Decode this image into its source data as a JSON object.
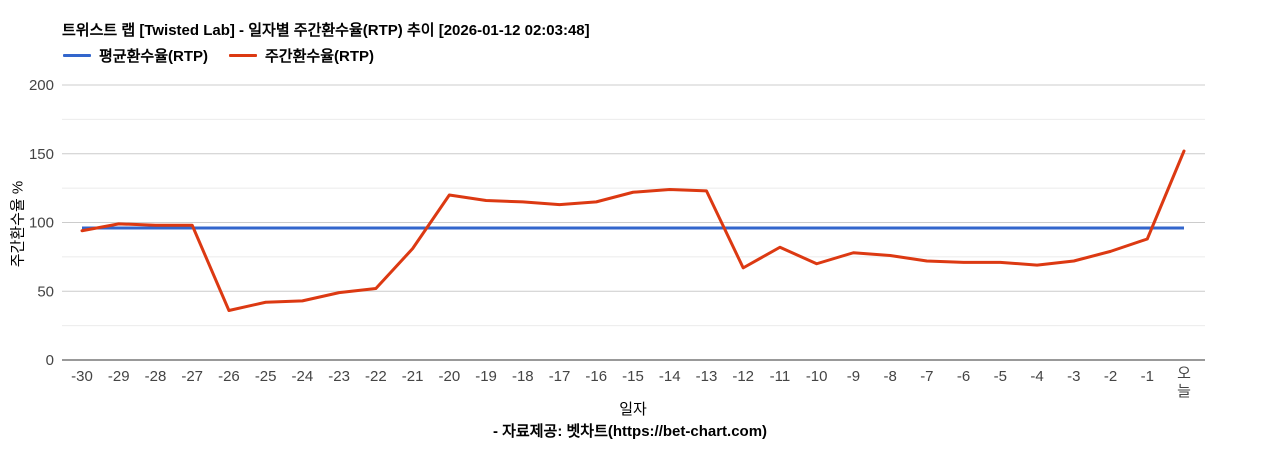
{
  "header": {
    "title": "트위스트 랩 [Twisted Lab] - 일자별 주간환수율(RTP) 추이 [2026-01-12 02:03:48]"
  },
  "legend": {
    "entries": [
      {
        "label": "평균환수율(RTP)",
        "color": "#3366cc"
      },
      {
        "label": "주간환수율(RTP)",
        "color": "#dc3912"
      }
    ]
  },
  "chart_data": {
    "type": "line",
    "title": "트위스트 랩 [Twisted Lab] - 일자별 주간환수율(RTP) 추이 [2026-01-12 02:03:48]",
    "xlabel": "일자",
    "ylabel": "주간환수율 %",
    "ylim": [
      0,
      200
    ],
    "yticks": [
      0,
      50,
      100,
      150,
      200
    ],
    "minor_gridlines": [
      25,
      75,
      125,
      175
    ],
    "grid": true,
    "legend_position": "top-left",
    "categories": [
      "-30",
      "-29",
      "-28",
      "-27",
      "-26",
      "-25",
      "-24",
      "-23",
      "-22",
      "-21",
      "-20",
      "-19",
      "-18",
      "-17",
      "-16",
      "-15",
      "-14",
      "-13",
      "-12",
      "-11",
      "-10",
      "-9",
      "-8",
      "-7",
      "-6",
      "-5",
      "-4",
      "-3",
      "-2",
      "-1",
      "오늘"
    ],
    "series": [
      {
        "name": "평균환수율(RTP)",
        "color": "#3366cc",
        "type": "constant",
        "value": 96
      },
      {
        "name": "주간환수율(RTP)",
        "color": "#dc3912",
        "type": "line",
        "values": [
          94,
          99,
          98,
          98,
          36,
          42,
          43,
          49,
          52,
          81,
          120,
          116,
          115,
          113,
          115,
          122,
          124,
          123,
          67,
          82,
          70,
          78,
          76,
          72,
          71,
          71,
          69,
          72,
          79,
          88,
          152
        ]
      }
    ]
  },
  "axes": {
    "x_title": "일자",
    "y_title": "주간환수율 %"
  },
  "footer": {
    "source": "- 자료제공: 벳차트(https://bet-chart.com)"
  },
  "colors": {
    "average_line": "#3366cc",
    "weekly_line": "#dc3912",
    "major_gridline": "#cccccc",
    "minor_gridline": "#ebebeb",
    "axis_baseline": "#333333",
    "tick_label": "#444444",
    "background": "#ffffff"
  }
}
